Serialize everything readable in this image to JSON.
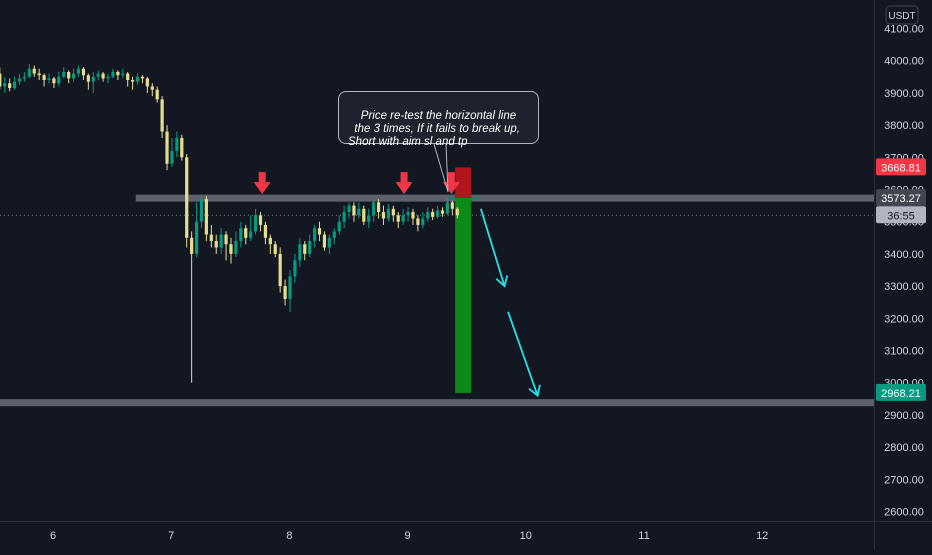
{
  "chart_data": {
    "type": "candlestick",
    "currency_label": "USDT",
    "x_ticks": [
      "6",
      "7",
      "8",
      "9",
      "10",
      "11",
      "12"
    ],
    "y_ticks": [
      2600,
      2700,
      2800,
      2900,
      3000,
      3100,
      3200,
      3300,
      3400,
      3500,
      3600,
      3700,
      3800,
      3900,
      4000,
      4100
    ],
    "y_tick_labels": [
      "2600.00",
      "2700.00",
      "2800.00",
      "2900.00",
      "3000.00",
      "3100.00",
      "3200.00",
      "3300.00",
      "3400.00",
      "3500.00",
      "3600.00",
      "3700.00",
      "3800.00",
      "3900.00",
      "4000.00",
      "4100.00"
    ],
    "ylim": [
      2600,
      4100
    ],
    "price_badges": [
      {
        "label": "3668.81",
        "value": 3668.81,
        "color": "#f23645"
      },
      {
        "label": "3573.27",
        "value": 3573.27,
        "color": "#434651"
      },
      {
        "label": "36:55",
        "value": 3520,
        "color": "#b2b5be"
      },
      {
        "label": "2968.21",
        "value": 2968.21,
        "color": "#089981"
      }
    ],
    "levels": [
      {
        "value": 3573.27,
        "x_start": 6.7
      },
      {
        "value": 2938,
        "x_start": 5.5
      }
    ],
    "last_price": 3520,
    "annotation_text": "Price re-test the horizontal line\n  the 3 times, If it fails to break up,\nShort with aim sl and tp",
    "markers": [
      7.77,
      8.97,
      9.37
    ],
    "position": {
      "x": 9.47,
      "entry": 3573.27,
      "stop": 3668.81,
      "target": 2968.21
    },
    "path_arrows": [
      [
        9.62,
        3540,
        9.82,
        3300
      ],
      [
        9.85,
        3220,
        10.1,
        2960
      ]
    ],
    "candles": [
      [
        3960,
        3920,
        3980,
        3910
      ],
      [
        3920,
        3930,
        3950,
        3900
      ],
      [
        3930,
        3915,
        3945,
        3905
      ],
      [
        3915,
        3935,
        3950,
        3910
      ],
      [
        3935,
        3945,
        3960,
        3925
      ],
      [
        3945,
        3950,
        3965,
        3935
      ],
      [
        3950,
        3975,
        3990,
        3945
      ],
      [
        3975,
        3960,
        3985,
        3950
      ],
      [
        3960,
        3955,
        3975,
        3940
      ],
      [
        3955,
        3940,
        3960,
        3920
      ],
      [
        3940,
        3945,
        3960,
        3930
      ],
      [
        3945,
        3930,
        3950,
        3915
      ],
      [
        3930,
        3950,
        3965,
        3920
      ],
      [
        3950,
        3965,
        3980,
        3945
      ],
      [
        3965,
        3945,
        3970,
        3930
      ],
      [
        3945,
        3960,
        3975,
        3935
      ],
      [
        3960,
        3975,
        3985,
        3950
      ],
      [
        3975,
        3955,
        3980,
        3940
      ],
      [
        3955,
        3935,
        3960,
        3910
      ],
      [
        3935,
        3950,
        3965,
        3900
      ],
      [
        3950,
        3960,
        3970,
        3940
      ],
      [
        3960,
        3945,
        3965,
        3935
      ],
      [
        3945,
        3950,
        3960,
        3930
      ],
      [
        3950,
        3965,
        3975,
        3945
      ],
      [
        3965,
        3955,
        3970,
        3940
      ],
      [
        3955,
        3960,
        3975,
        3945
      ],
      [
        3960,
        3940,
        3965,
        3920
      ],
      [
        3940,
        3935,
        3950,
        3910
      ],
      [
        3935,
        3950,
        3960,
        3925
      ],
      [
        3950,
        3945,
        3955,
        3930
      ],
      [
        3945,
        3920,
        3950,
        3900
      ],
      [
        3920,
        3910,
        3930,
        3890
      ],
      [
        3910,
        3880,
        3920,
        3870
      ],
      [
        3880,
        3780,
        3890,
        3760
      ],
      [
        3780,
        3680,
        3800,
        3660
      ],
      [
        3680,
        3720,
        3760,
        3670
      ],
      [
        3720,
        3760,
        3780,
        3700
      ],
      [
        3760,
        3700,
        3770,
        3690
      ],
      [
        3700,
        3450,
        3710,
        3420
      ],
      [
        3450,
        3400,
        3470,
        3000
      ],
      [
        3400,
        3500,
        3560,
        3390
      ],
      [
        3500,
        3570,
        3585,
        3480
      ],
      [
        3570,
        3460,
        3580,
        3440
      ],
      [
        3460,
        3440,
        3490,
        3420
      ],
      [
        3440,
        3420,
        3460,
        3400
      ],
      [
        3420,
        3460,
        3480,
        3400
      ],
      [
        3460,
        3430,
        3470,
        3380
      ],
      [
        3430,
        3400,
        3450,
        3370
      ],
      [
        3400,
        3440,
        3470,
        3390
      ],
      [
        3440,
        3480,
        3500,
        3420
      ],
      [
        3480,
        3450,
        3490,
        3430
      ],
      [
        3450,
        3470,
        3520,
        3440
      ],
      [
        3470,
        3520,
        3540,
        3460
      ],
      [
        3520,
        3490,
        3530,
        3470
      ],
      [
        3490,
        3450,
        3500,
        3430
      ],
      [
        3450,
        3430,
        3460,
        3400
      ],
      [
        3430,
        3400,
        3440,
        3390
      ],
      [
        3400,
        3300,
        3420,
        3280
      ],
      [
        3300,
        3260,
        3320,
        3240
      ],
      [
        3260,
        3330,
        3350,
        3220
      ],
      [
        3330,
        3380,
        3400,
        3310
      ],
      [
        3380,
        3430,
        3450,
        3360
      ],
      [
        3430,
        3400,
        3440,
        3380
      ],
      [
        3400,
        3440,
        3460,
        3390
      ],
      [
        3440,
        3480,
        3490,
        3420
      ],
      [
        3480,
        3460,
        3500,
        3440
      ],
      [
        3460,
        3420,
        3470,
        3410
      ],
      [
        3420,
        3450,
        3460,
        3400
      ],
      [
        3450,
        3470,
        3480,
        3430
      ],
      [
        3470,
        3500,
        3520,
        3460
      ],
      [
        3500,
        3530,
        3550,
        3480
      ],
      [
        3530,
        3550,
        3560,
        3510
      ],
      [
        3550,
        3520,
        3560,
        3500
      ],
      [
        3520,
        3540,
        3560,
        3510
      ],
      [
        3540,
        3500,
        3550,
        3490
      ],
      [
        3500,
        3520,
        3540,
        3480
      ],
      [
        3520,
        3560,
        3575,
        3500
      ],
      [
        3560,
        3530,
        3570,
        3510
      ],
      [
        3530,
        3510,
        3550,
        3490
      ],
      [
        3510,
        3540,
        3555,
        3500
      ],
      [
        3540,
        3520,
        3550,
        3500
      ],
      [
        3520,
        3500,
        3530,
        3480
      ],
      [
        3500,
        3520,
        3540,
        3490
      ],
      [
        3520,
        3530,
        3545,
        3500
      ],
      [
        3530,
        3510,
        3540,
        3490
      ],
      [
        3510,
        3490,
        3520,
        3470
      ],
      [
        3490,
        3510,
        3530,
        3480
      ],
      [
        3510,
        3530,
        3545,
        3500
      ],
      [
        3530,
        3515,
        3540,
        3505
      ],
      [
        3515,
        3535,
        3550,
        3510
      ],
      [
        3535,
        3525,
        3545,
        3515
      ],
      [
        3525,
        3560,
        3575,
        3520
      ],
      [
        3560,
        3540,
        3565,
        3520
      ],
      [
        3540,
        3520,
        3545,
        3510
      ]
    ]
  }
}
